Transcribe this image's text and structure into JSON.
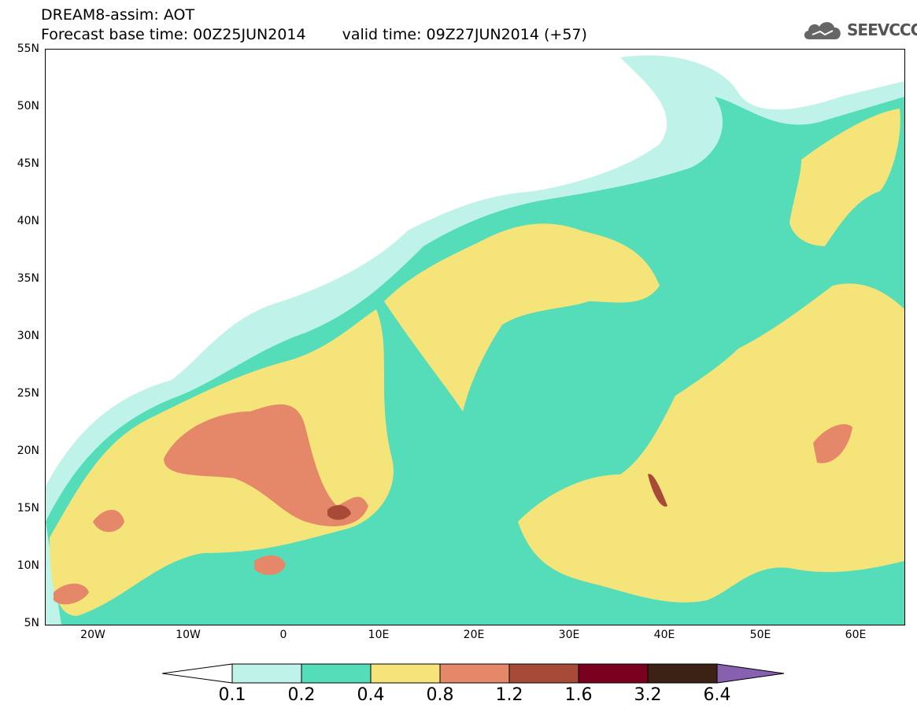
{
  "header": {
    "title": "DREAM8-assim: AOT",
    "base_time": "Forecast base time: 00Z25JUN2014",
    "valid_time": "valid time: 09Z27JUN2014 (+57)"
  },
  "logo": {
    "text": "SEEVCCC",
    "icon": "cloud-icon"
  },
  "map": {
    "latitude_labels": [
      "55N",
      "50N",
      "45N",
      "40N",
      "35N",
      "30N",
      "25N",
      "20N",
      "15N",
      "10N",
      "5N"
    ],
    "longitude_labels": [
      "20W",
      "10W",
      "0",
      "10E",
      "20E",
      "30E",
      "40E",
      "50E",
      "60E"
    ],
    "extent": {
      "lon_min": -25,
      "lon_max": 65,
      "lat_min": 5,
      "lat_max": 55
    }
  },
  "legend": {
    "labels": [
      "0.1",
      "0.2",
      "0.4",
      "0.8",
      "1.2",
      "1.6",
      "3.2",
      "6.4"
    ],
    "colors": [
      "#ffffff",
      "#bff2e8",
      "#55dcb8",
      "#f5e47a",
      "#e5886a",
      "#a84a38",
      "#7a0020",
      "#3c2214",
      "#8860b0"
    ]
  }
}
